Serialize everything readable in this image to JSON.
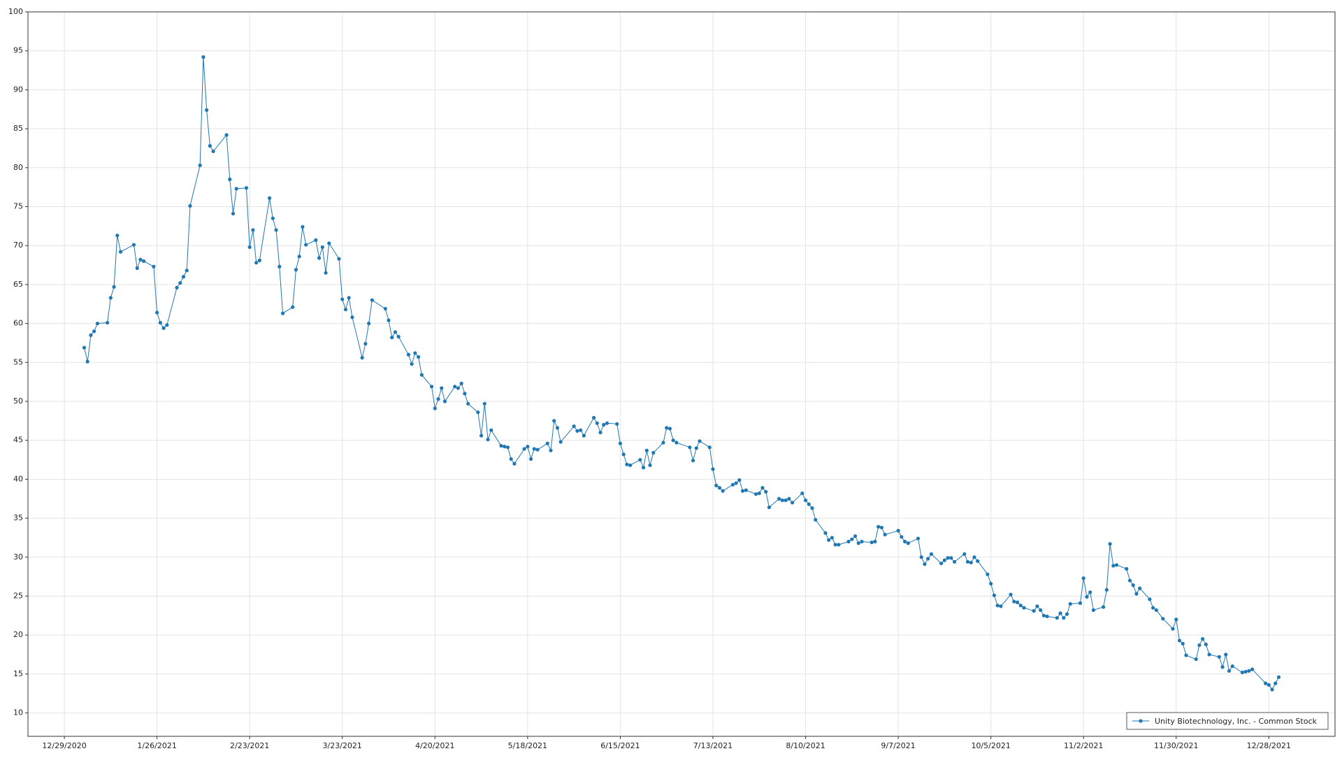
{
  "chart_data": {
    "type": "line",
    "x": [
      "1/4/2021",
      "1/5/2021",
      "1/6/2021",
      "1/7/2021",
      "1/8/2021",
      "1/11/2021",
      "1/12/2021",
      "1/13/2021",
      "1/14/2021",
      "1/15/2021",
      "1/19/2021",
      "1/20/2021",
      "1/21/2021",
      "1/22/2021",
      "1/25/2021",
      "1/26/2021",
      "1/27/2021",
      "1/28/2021",
      "1/29/2021",
      "2/1/2021",
      "2/2/2021",
      "2/3/2021",
      "2/4/2021",
      "2/5/2021",
      "2/8/2021",
      "2/9/2021",
      "2/10/2021",
      "2/11/2021",
      "2/12/2021",
      "2/16/2021",
      "2/17/2021",
      "2/18/2021",
      "2/19/2021",
      "2/22/2021",
      "2/23/2021",
      "2/24/2021",
      "2/25/2021",
      "2/26/2021",
      "3/1/2021",
      "3/2/2021",
      "3/3/2021",
      "3/4/2021",
      "3/5/2021",
      "3/8/2021",
      "3/9/2021",
      "3/10/2021",
      "3/11/2021",
      "3/12/2021",
      "3/15/2021",
      "3/16/2021",
      "3/17/2021",
      "3/18/2021",
      "3/19/2021",
      "3/22/2021",
      "3/23/2021",
      "3/24/2021",
      "3/25/2021",
      "3/26/2021",
      "3/29/2021",
      "3/30/2021",
      "3/31/2021",
      "4/1/2021",
      "4/5/2021",
      "4/6/2021",
      "4/7/2021",
      "4/8/2021",
      "4/9/2021",
      "4/12/2021",
      "4/13/2021",
      "4/14/2021",
      "4/15/2021",
      "4/16/2021",
      "4/19/2021",
      "4/20/2021",
      "4/21/2021",
      "4/22/2021",
      "4/23/2021",
      "4/26/2021",
      "4/27/2021",
      "4/28/2021",
      "4/29/2021",
      "4/30/2021",
      "5/3/2021",
      "5/4/2021",
      "5/5/2021",
      "5/6/2021",
      "5/7/2021",
      "5/10/2021",
      "5/11/2021",
      "5/12/2021",
      "5/13/2021",
      "5/14/2021",
      "5/17/2021",
      "5/18/2021",
      "5/19/2021",
      "5/20/2021",
      "5/21/2021",
      "5/24/2021",
      "5/25/2021",
      "5/26/2021",
      "5/27/2021",
      "5/28/2021",
      "6/1/2021",
      "6/2/2021",
      "6/3/2021",
      "6/4/2021",
      "6/7/2021",
      "6/8/2021",
      "6/9/2021",
      "6/10/2021",
      "6/11/2021",
      "6/14/2021",
      "6/15/2021",
      "6/16/2021",
      "6/17/2021",
      "6/18/2021",
      "6/21/2021",
      "6/22/2021",
      "6/23/2021",
      "6/24/2021",
      "6/25/2021",
      "6/28/2021",
      "6/29/2021",
      "6/30/2021",
      "7/1/2021",
      "7/2/2021",
      "7/6/2021",
      "7/7/2021",
      "7/8/2021",
      "7/9/2021",
      "7/12/2021",
      "7/13/2021",
      "7/14/2021",
      "7/15/2021",
      "7/16/2021",
      "7/19/2021",
      "7/20/2021",
      "7/21/2021",
      "7/22/2021",
      "7/23/2021",
      "7/26/2021",
      "7/27/2021",
      "7/28/2021",
      "7/29/2021",
      "7/30/2021",
      "8/2/2021",
      "8/3/2021",
      "8/4/2021",
      "8/5/2021",
      "8/6/2021",
      "8/9/2021",
      "8/10/2021",
      "8/11/2021",
      "8/12/2021",
      "8/13/2021",
      "8/16/2021",
      "8/17/2021",
      "8/18/2021",
      "8/19/2021",
      "8/20/2021",
      "8/23/2021",
      "8/24/2021",
      "8/25/2021",
      "8/26/2021",
      "8/27/2021",
      "8/30/2021",
      "8/31/2021",
      "9/1/2021",
      "9/2/2021",
      "9/3/2021",
      "9/7/2021",
      "9/8/2021",
      "9/9/2021",
      "9/10/2021",
      "9/13/2021",
      "9/14/2021",
      "9/15/2021",
      "9/16/2021",
      "9/17/2021",
      "9/20/2021",
      "9/21/2021",
      "9/22/2021",
      "9/23/2021",
      "9/24/2021",
      "9/27/2021",
      "9/28/2021",
      "9/29/2021",
      "9/30/2021",
      "10/1/2021",
      "10/4/2021",
      "10/5/2021",
      "10/6/2021",
      "10/7/2021",
      "10/8/2021",
      "10/11/2021",
      "10/12/2021",
      "10/13/2021",
      "10/14/2021",
      "10/15/2021",
      "10/18/2021",
      "10/19/2021",
      "10/20/2021",
      "10/21/2021",
      "10/22/2021",
      "10/25/2021",
      "10/26/2021",
      "10/27/2021",
      "10/28/2021",
      "10/29/2021",
      "11/1/2021",
      "11/2/2021",
      "11/3/2021",
      "11/4/2021",
      "11/5/2021",
      "11/8/2021",
      "11/9/2021",
      "11/10/2021",
      "11/11/2021",
      "11/12/2021",
      "11/15/2021",
      "11/16/2021",
      "11/17/2021",
      "11/18/2021",
      "11/19/2021",
      "11/22/2021",
      "11/23/2021",
      "11/24/2021",
      "11/26/2021",
      "11/29/2021",
      "11/30/2021",
      "12/1/2021",
      "12/2/2021",
      "12/3/2021",
      "12/6/2021",
      "12/7/2021",
      "12/8/2021",
      "12/9/2021",
      "12/10/2021",
      "12/13/2021",
      "12/14/2021",
      "12/15/2021",
      "12/16/2021",
      "12/17/2021",
      "12/20/2021",
      "12/21/2021",
      "12/22/2021",
      "12/23/2021",
      "12/27/2021",
      "12/28/2021",
      "12/29/2021",
      "12/30/2021",
      "12/31/2021"
    ],
    "series": [
      {
        "name": "Unity Biotechnology, Inc. - Common Stock",
        "color": "#1f77b4",
        "values": [
          56.9,
          55.1,
          58.5,
          59,
          60,
          60.1,
          63.3,
          64.7,
          71.3,
          69.2,
          70.1,
          67.1,
          68.2,
          68,
          67.3,
          61.4,
          60.1,
          59.4,
          59.8,
          64.6,
          65.2,
          66,
          66.8,
          75.1,
          80.3,
          94.2,
          87.4,
          82.8,
          82.1,
          84.2,
          78.5,
          74.1,
          77.3,
          77.4,
          69.8,
          72,
          67.8,
          68.1,
          76.1,
          73.5,
          72,
          67.3,
          61.3,
          62.1,
          66.9,
          68.6,
          72.4,
          70.1,
          70.7,
          68.4,
          69.8,
          66.5,
          70.3,
          68.3,
          63.1,
          61.8,
          63.3,
          60.8,
          55.6,
          57.4,
          60,
          63,
          61.9,
          60.4,
          58.2,
          58.9,
          58.3,
          56,
          54.8,
          56.2,
          55.7,
          53.4,
          51.9,
          49.1,
          50.3,
          51.7,
          50,
          51.9,
          51.7,
          52.3,
          51,
          49.7,
          48.6,
          45.6,
          49.7,
          45.1,
          46.3,
          44.3,
          44.2,
          44.1,
          42.6,
          42,
          43.9,
          44.2,
          42.6,
          43.9,
          43.8,
          44.6,
          43.7,
          47.5,
          46.6,
          44.8,
          46.8,
          46.2,
          46.3,
          45.6,
          47.9,
          47.2,
          46,
          47,
          47.2,
          47.1,
          44.6,
          43.2,
          41.9,
          41.8,
          42.5,
          41.5,
          43.7,
          41.8,
          43.4,
          44.7,
          46.6,
          46.5,
          45,
          44.7,
          44.1,
          42.4,
          44,
          44.9,
          44.1,
          41.3,
          39.2,
          38.9,
          38.5,
          39.3,
          39.5,
          39.9,
          38.5,
          38.6,
          38.1,
          38.2,
          38.9,
          38.4,
          36.4,
          37.5,
          37.3,
          37.3,
          37.5,
          37,
          38.2,
          37.3,
          36.8,
          36.3,
          34.8,
          33.1,
          32.2,
          32.5,
          31.6,
          31.6,
          32,
          32.3,
          32.7,
          31.8,
          32,
          31.9,
          32,
          33.9,
          33.8,
          32.9,
          33.4,
          32.6,
          32,
          31.8,
          32.4,
          30,
          29.1,
          29.8,
          30.4,
          29.2,
          29.6,
          29.9,
          29.9,
          29.4,
          30.4,
          29.4,
          29.3,
          30,
          29.5,
          27.8,
          26.6,
          25.1,
          23.8,
          23.7,
          25.2,
          24.3,
          24.2,
          23.8,
          23.5,
          23.1,
          23.7,
          23.2,
          22.5,
          22.4,
          22.2,
          22.8,
          22.2,
          22.7,
          24,
          24.1,
          27.3,
          24.9,
          25.5,
          23.2,
          23.6,
          25.8,
          31.7,
          28.9,
          29,
          28.5,
          27,
          26.4,
          25.3,
          26,
          24.6,
          23.5,
          23.2,
          22.1,
          20.8,
          22,
          19.3,
          18.9,
          17.4,
          16.9,
          18.7,
          19.5,
          18.8,
          17.5,
          17.2,
          15.9,
          17.5,
          15.4,
          16,
          15.2,
          15.3,
          15.4,
          15.6,
          13.8,
          13.6,
          13,
          13.8,
          14.6
        ]
      }
    ],
    "xlim": [
      "12/18/2020",
      "1/17/2022"
    ],
    "xticks": [
      "12/29/2020",
      "1/26/2021",
      "2/23/2021",
      "3/23/2021",
      "4/20/2021",
      "5/18/2021",
      "6/15/2021",
      "7/13/2021",
      "8/10/2021",
      "9/7/2021",
      "10/5/2021",
      "11/2/2021",
      "11/30/2021",
      "12/28/2021"
    ],
    "ylim": [
      7,
      100
    ],
    "yticks": [
      10,
      15,
      20,
      25,
      30,
      35,
      40,
      45,
      50,
      55,
      60,
      65,
      70,
      75,
      80,
      85,
      90,
      95,
      100
    ],
    "grid": true,
    "legend": "lower right"
  }
}
